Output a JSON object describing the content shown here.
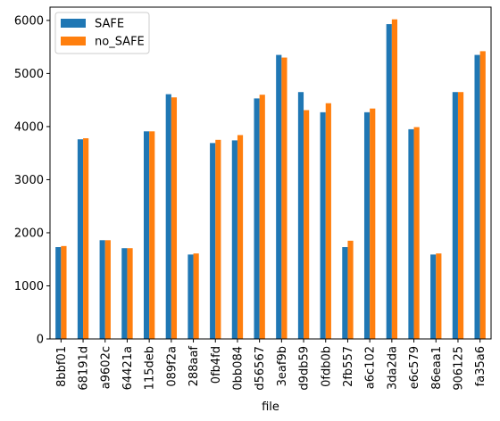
{
  "chart_data": {
    "type": "bar",
    "xlabel": "file",
    "ylabel": "",
    "ylim": [
      0,
      6250
    ],
    "yticks": [
      0,
      1000,
      2000,
      3000,
      4000,
      5000,
      6000
    ],
    "legend_position": "top-left",
    "grid": false,
    "categories": [
      "8bbf01",
      "68191d",
      "a9602c",
      "64421a",
      "115deb",
      "089f2a",
      "288aaf",
      "0fb4fd",
      "0bb084",
      "d56567",
      "3eaf9b",
      "d9db59",
      "0fdb0b",
      "2fb557",
      "a6c102",
      "3da2da",
      "e6c579",
      "86eaa1",
      "906125",
      "fa35a6"
    ],
    "series": [
      {
        "name": "SAFE",
        "color": "#1f77b4",
        "values": [
          1730,
          3760,
          1860,
          1710,
          3910,
          4610,
          1590,
          3690,
          3740,
          4530,
          5350,
          4650,
          4270,
          1730,
          4270,
          5930,
          3950,
          1590,
          4650,
          5350
        ]
      },
      {
        "name": "no_SAFE",
        "color": "#ff7f0e",
        "values": [
          1750,
          3780,
          1860,
          1710,
          3910,
          4550,
          1610,
          3750,
          3840,
          4600,
          5300,
          4310,
          4440,
          1850,
          4340,
          6020,
          3990,
          1610,
          4650,
          5420
        ]
      }
    ]
  }
}
